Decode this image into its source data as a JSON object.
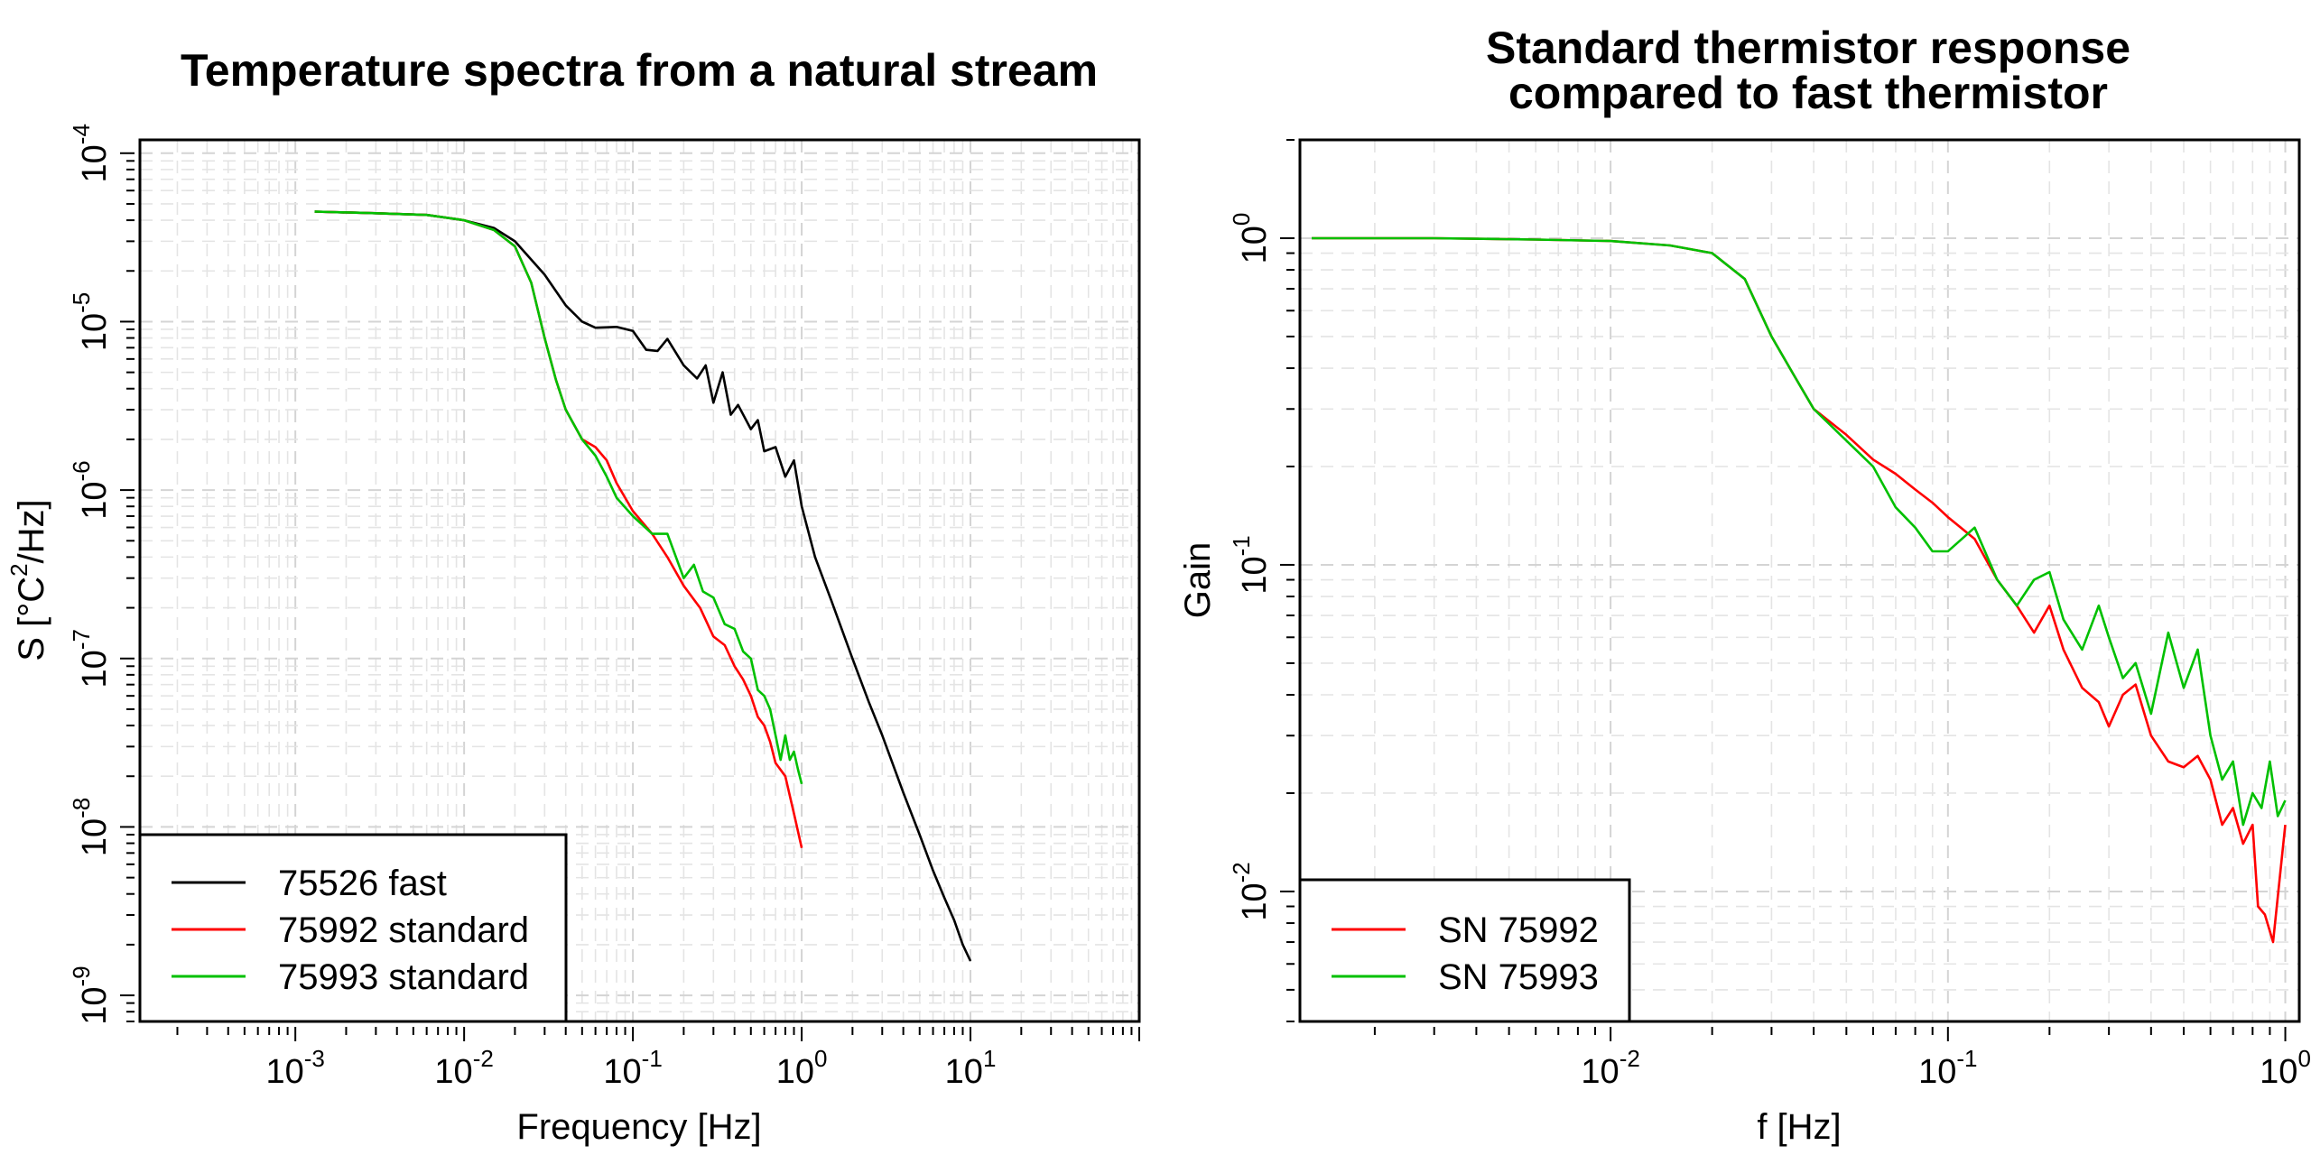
{
  "chart_data": [
    {
      "type": "line",
      "title": "Temperature spectra from a natural stream",
      "xlabel": "Frequency [Hz]",
      "ylabel": "S [°C²/Hz]",
      "ylabel_base": "S [°C",
      "ylabel_sup": "2",
      "ylabel_tail": "/Hz]",
      "x_scale": "log",
      "y_scale": "log",
      "xlim": [
        0.00012,
        100
      ],
      "ylim": [
        7e-10,
        0.00012
      ],
      "x_tick_labels": [
        {
          "value": 0.001,
          "base": "10",
          "exp": "-3"
        },
        {
          "value": 0.01,
          "base": "10",
          "exp": "-2"
        },
        {
          "value": 0.1,
          "base": "10",
          "exp": "-1"
        },
        {
          "value": 1,
          "base": "10",
          "exp": "0"
        },
        {
          "value": 10,
          "base": "10",
          "exp": "1"
        }
      ],
      "y_tick_labels": [
        {
          "value": 1e-09,
          "base": "10",
          "exp": "-9"
        },
        {
          "value": 1e-08,
          "base": "10",
          "exp": "-8"
        },
        {
          "value": 1e-07,
          "base": "10",
          "exp": "-7"
        },
        {
          "value": 1e-06,
          "base": "10",
          "exp": "-6"
        },
        {
          "value": 1e-05,
          "base": "10",
          "exp": "-5"
        },
        {
          "value": 0.0001,
          "base": "10",
          "exp": "-4"
        }
      ],
      "grid": true,
      "legend_position": "bottom-left",
      "series": [
        {
          "name": "75526 fast",
          "color": "#000000",
          "x": [
            0.0013,
            0.003,
            0.006,
            0.01,
            0.015,
            0.02,
            0.03,
            0.04,
            0.05,
            0.06,
            0.08,
            0.1,
            0.12,
            0.14,
            0.16,
            0.2,
            0.24,
            0.27,
            0.3,
            0.34,
            0.38,
            0.42,
            0.5,
            0.55,
            0.6,
            0.7,
            0.8,
            0.9,
            1.0,
            1.2,
            1.5,
            2.0,
            2.5,
            3.0,
            4.0,
            5.0,
            6.0,
            7.0,
            8.0,
            9.0,
            10.0
          ],
          "y": [
            4.5e-05,
            4.4e-05,
            4.3e-05,
            4e-05,
            3.6e-05,
            3e-05,
            1.9e-05,
            1.25e-05,
            1e-05,
            9.2e-06,
            9.3e-06,
            8.8e-06,
            6.8e-06,
            6.7e-06,
            7.9e-06,
            5.5e-06,
            4.6e-06,
            5.5e-06,
            3.3e-06,
            5e-06,
            2.8e-06,
            3.2e-06,
            2.3e-06,
            2.6e-06,
            1.7e-06,
            1.8e-06,
            1.2e-06,
            1.5e-06,
            8e-07,
            4e-07,
            2.2e-07,
            1e-07,
            5.5e-08,
            3.5e-08,
            1.6e-08,
            9e-09,
            5.5e-09,
            3.8e-09,
            2.8e-09,
            2e-09,
            1.6e-09
          ]
        },
        {
          "name": "75992 standard",
          "color": "#ff0000",
          "x": [
            0.0013,
            0.003,
            0.006,
            0.01,
            0.015,
            0.02,
            0.025,
            0.03,
            0.035,
            0.04,
            0.05,
            0.06,
            0.07,
            0.08,
            0.1,
            0.13,
            0.16,
            0.2,
            0.25,
            0.3,
            0.35,
            0.4,
            0.45,
            0.5,
            0.55,
            0.6,
            0.65,
            0.7,
            0.8,
            0.9,
            1.0
          ],
          "y": [
            4.5e-05,
            4.4e-05,
            4.3e-05,
            4e-05,
            3.5e-05,
            2.8e-05,
            1.7e-05,
            8e-06,
            4.5e-06,
            3e-06,
            2e-06,
            1.8e-06,
            1.5e-06,
            1.1e-06,
            7.5e-07,
            5.5e-07,
            4e-07,
            2.7e-07,
            2e-07,
            1.35e-07,
            1.2e-07,
            9e-08,
            7.5e-08,
            6e-08,
            4.5e-08,
            4e-08,
            3.2e-08,
            2.4e-08,
            2e-08,
            1.2e-08,
            7.5e-09
          ]
        },
        {
          "name": "75993 standard",
          "color": "#00c000",
          "x": [
            0.0013,
            0.003,
            0.006,
            0.01,
            0.015,
            0.02,
            0.025,
            0.03,
            0.035,
            0.04,
            0.05,
            0.06,
            0.07,
            0.08,
            0.1,
            0.13,
            0.16,
            0.2,
            0.23,
            0.26,
            0.3,
            0.35,
            0.4,
            0.45,
            0.5,
            0.55,
            0.6,
            0.65,
            0.7,
            0.75,
            0.8,
            0.85,
            0.9,
            0.95,
            1.0
          ],
          "y": [
            4.5e-05,
            4.4e-05,
            4.3e-05,
            4e-05,
            3.5e-05,
            2.8e-05,
            1.7e-05,
            8e-06,
            4.5e-06,
            3e-06,
            2e-06,
            1.6e-06,
            1.2e-06,
            9e-07,
            7e-07,
            5.5e-07,
            5.5e-07,
            3e-07,
            3.6e-07,
            2.5e-07,
            2.3e-07,
            1.6e-07,
            1.5e-07,
            1.1e-07,
            1e-07,
            6.5e-08,
            6e-08,
            5e-08,
            3.5e-08,
            2.5e-08,
            3.5e-08,
            2.5e-08,
            2.8e-08,
            2.2e-08,
            1.8e-08
          ]
        }
      ]
    },
    {
      "type": "line",
      "title": "Standard thermistor response",
      "title_line2": "compared to fast thermistor",
      "xlabel": "f [Hz]",
      "ylabel": "Gain",
      "x_scale": "log",
      "y_scale": "log",
      "xlim": [
        0.0012,
        1.1
      ],
      "ylim": [
        0.004,
        2.0
      ],
      "x_tick_labels": [
        {
          "value": 0.01,
          "base": "10",
          "exp": "-2"
        },
        {
          "value": 0.1,
          "base": "10",
          "exp": "-1"
        },
        {
          "value": 1,
          "base": "10",
          "exp": "0"
        }
      ],
      "y_tick_labels": [
        {
          "value": 0.01,
          "base": "10",
          "exp": "-2"
        },
        {
          "value": 0.1,
          "base": "10",
          "exp": "-1"
        },
        {
          "value": 1,
          "base": "10",
          "exp": "0"
        }
      ],
      "grid": true,
      "legend_position": "bottom-left",
      "series": [
        {
          "name": "SN 75992",
          "color": "#ff0000",
          "x": [
            0.0013,
            0.003,
            0.006,
            0.01,
            0.015,
            0.02,
            0.025,
            0.03,
            0.035,
            0.04,
            0.05,
            0.06,
            0.07,
            0.08,
            0.09,
            0.1,
            0.12,
            0.14,
            0.16,
            0.18,
            0.2,
            0.22,
            0.25,
            0.28,
            0.3,
            0.33,
            0.36,
            0.4,
            0.45,
            0.5,
            0.55,
            0.6,
            0.65,
            0.7,
            0.75,
            0.8,
            0.83,
            0.87,
            0.92,
            1.0
          ],
          "y": [
            1.0,
            1.0,
            0.99,
            0.98,
            0.95,
            0.9,
            0.75,
            0.5,
            0.38,
            0.3,
            0.25,
            0.21,
            0.19,
            0.17,
            0.155,
            0.14,
            0.12,
            0.09,
            0.075,
            0.062,
            0.075,
            0.055,
            0.042,
            0.038,
            0.032,
            0.04,
            0.043,
            0.03,
            0.025,
            0.024,
            0.026,
            0.022,
            0.016,
            0.018,
            0.014,
            0.016,
            0.009,
            0.0085,
            0.007,
            0.016
          ]
        },
        {
          "name": "SN 75993",
          "color": "#00c000",
          "x": [
            0.0013,
            0.003,
            0.006,
            0.01,
            0.015,
            0.02,
            0.025,
            0.03,
            0.035,
            0.04,
            0.05,
            0.06,
            0.07,
            0.08,
            0.09,
            0.1,
            0.12,
            0.14,
            0.16,
            0.18,
            0.2,
            0.22,
            0.25,
            0.28,
            0.3,
            0.33,
            0.36,
            0.4,
            0.45,
            0.5,
            0.55,
            0.6,
            0.65,
            0.7,
            0.75,
            0.8,
            0.85,
            0.9,
            0.95,
            1.0
          ],
          "y": [
            1.0,
            1.0,
            0.99,
            0.98,
            0.95,
            0.9,
            0.75,
            0.5,
            0.38,
            0.3,
            0.24,
            0.2,
            0.15,
            0.13,
            0.11,
            0.11,
            0.13,
            0.09,
            0.075,
            0.09,
            0.095,
            0.068,
            0.055,
            0.075,
            0.06,
            0.045,
            0.05,
            0.035,
            0.062,
            0.042,
            0.055,
            0.03,
            0.022,
            0.025,
            0.016,
            0.02,
            0.018,
            0.025,
            0.017,
            0.019
          ]
        }
      ]
    }
  ]
}
